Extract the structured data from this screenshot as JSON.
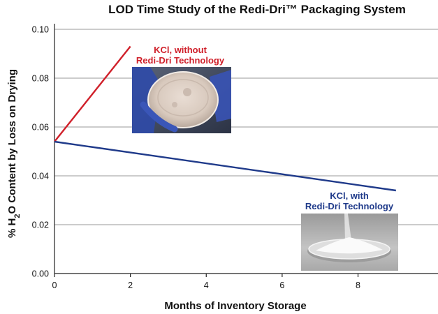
{
  "chart_data": {
    "type": "line",
    "title": "LOD Time Study of the Redi-Dri™ Packaging System",
    "xlabel": "Months of Inventory Storage",
    "ylabel": "% H2O Content by Loss on Drying",
    "ylabel_parts": {
      "pre": "% H",
      "sub": "2",
      "post": "O Content by Loss on Drying"
    },
    "xlim": [
      0,
      10.2
    ],
    "ylim": [
      0,
      0.1
    ],
    "x_ticks": [
      0,
      2,
      4,
      6,
      8
    ],
    "y_ticks": [
      0.0,
      0.02,
      0.04,
      0.06,
      0.08,
      0.1
    ],
    "y_tick_labels": [
      "0.00",
      "0.02",
      "0.04",
      "0.06",
      "0.08",
      "0.10"
    ],
    "grid": true,
    "series": [
      {
        "name": "KCl, without Redi-Dri Technology",
        "color": "#d0202a",
        "x": [
          0,
          2
        ],
        "y": [
          0.054,
          0.093
        ]
      },
      {
        "name": "KCl, with Redi-Dri Technology",
        "color": "#1f3a8a",
        "x": [
          0,
          9
        ],
        "y": [
          0.054,
          0.034
        ]
      }
    ],
    "annotations": [
      {
        "lines": [
          "KCl,  without",
          "Redi-Dri Technology"
        ],
        "color": "#d0202a",
        "image": "gloved-hand-holding-petri-dish"
      },
      {
        "lines": [
          "KCl, with",
          "Redi-Dri Technology"
        ],
        "color": "#1f3a8a",
        "image": "white-powder-in-petri-dish"
      }
    ]
  }
}
